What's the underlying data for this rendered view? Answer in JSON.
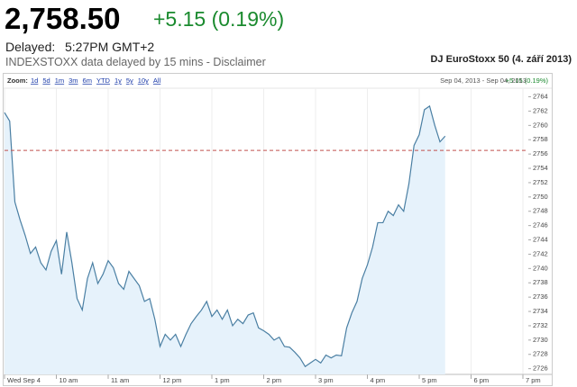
{
  "header": {
    "price": "2,758.50",
    "change": "+5.15 (0.19%)",
    "delayed_label": "Delayed:",
    "time": "5:27PM GMT+2",
    "note": "INDEXSTOXX data delayed by 15 mins - Disclaimer"
  },
  "chart_data": {
    "type": "line",
    "title": "DJ EuroStoxx 50 (4. září 2013)",
    "zoom_label": "Zoom:",
    "zoom_options": [
      "1d",
      "5d",
      "1m",
      "3m",
      "6m",
      "YTD",
      "1y",
      "5y",
      "10y",
      "All"
    ],
    "date_range": "Sep 04, 2013 - Sep 04, 2013",
    "range_change": "+5.15 (0.19%)",
    "x": [
      9.0,
      9.1,
      9.2,
      9.3,
      9.4,
      9.5,
      9.6,
      9.7,
      9.8,
      9.9,
      10.0,
      10.1,
      10.2,
      10.3,
      10.4,
      10.5,
      10.6,
      10.7,
      10.8,
      10.9,
      11.0,
      11.1,
      11.2,
      11.3,
      11.4,
      11.5,
      11.6,
      11.7,
      11.8,
      11.9,
      12.0,
      12.1,
      12.2,
      12.3,
      12.4,
      12.5,
      12.6,
      12.7,
      12.8,
      12.9,
      13.0,
      13.1,
      13.2,
      13.3,
      13.4,
      13.5,
      13.6,
      13.7,
      13.8,
      13.9,
      14.0,
      14.1,
      14.2,
      14.3,
      14.4,
      14.5,
      14.6,
      14.7,
      14.8,
      14.9,
      15.0,
      15.1,
      15.2,
      15.3,
      15.4,
      15.5,
      15.6,
      15.7,
      15.8,
      15.9,
      16.0,
      16.1,
      16.2,
      16.3,
      16.4,
      16.5,
      16.6,
      16.7,
      16.8,
      16.9,
      17.0,
      17.1,
      17.2,
      17.3,
      17.4,
      17.5
    ],
    "series": [
      {
        "name": "DJ EuroStoxx 50",
        "color": "#4a7fa3",
        "fill": "#e6f2fb",
        "values": [
          2761.8,
          2760.6,
          2749.3,
          2746.8,
          2744.6,
          2742.1,
          2743.0,
          2740.8,
          2739.8,
          2742.4,
          2743.9,
          2739.2,
          2745.1,
          2740.8,
          2735.8,
          2734.2,
          2738.6,
          2740.8,
          2737.9,
          2739.2,
          2741.1,
          2740.1,
          2737.9,
          2737.1,
          2739.6,
          2738.6,
          2737.6,
          2735.4,
          2735.8,
          2732.9,
          2729.1,
          2730.8,
          2730.0,
          2730.8,
          2729.1,
          2730.8,
          2732.3,
          2733.3,
          2734.2,
          2735.4,
          2733.3,
          2734.2,
          2732.9,
          2734.2,
          2732.0,
          2732.9,
          2732.3,
          2733.5,
          2733.8,
          2731.7,
          2731.3,
          2730.8,
          2730.0,
          2730.4,
          2729.1,
          2729.0,
          2728.3,
          2727.5,
          2726.3,
          2726.8,
          2727.3,
          2726.8,
          2727.9,
          2727.5,
          2727.9,
          2727.8,
          2731.7,
          2733.8,
          2735.4,
          2738.6,
          2740.5,
          2743.0,
          2746.4,
          2746.4,
          2748.0,
          2747.4,
          2748.9,
          2748.0,
          2751.8,
          2757.2,
          2758.7,
          2762.2,
          2762.7,
          2760.0,
          2757.7,
          2758.5
        ]
      }
    ],
    "reference_line": 2756.5,
    "reference_color": "#c0504d",
    "xlim": [
      9.0,
      19.5
    ],
    "xticks": [
      {
        "value": 9,
        "label": "Wed Sep 4"
      },
      {
        "value": 10,
        "label": "10 am"
      },
      {
        "value": 11,
        "label": "11 am"
      },
      {
        "value": 12,
        "label": "12 pm"
      },
      {
        "value": 13,
        "label": "1 pm"
      },
      {
        "value": 14,
        "label": "2 pm"
      },
      {
        "value": 15,
        "label": "3 pm"
      },
      {
        "value": 16,
        "label": "4 pm"
      },
      {
        "value": 17,
        "label": "5 pm"
      },
      {
        "value": 18,
        "label": "6 pm"
      },
      {
        "value": 19,
        "label": "7 pm"
      }
    ],
    "ylim": [
      2725.2,
      2765.2
    ],
    "yticks": [
      2726,
      2728,
      2730,
      2732,
      2734,
      2736,
      2738,
      2740,
      2742,
      2744,
      2746,
      2748,
      2750,
      2752,
      2754,
      2756,
      2758,
      2760,
      2762,
      2764
    ],
    "grid": true
  }
}
